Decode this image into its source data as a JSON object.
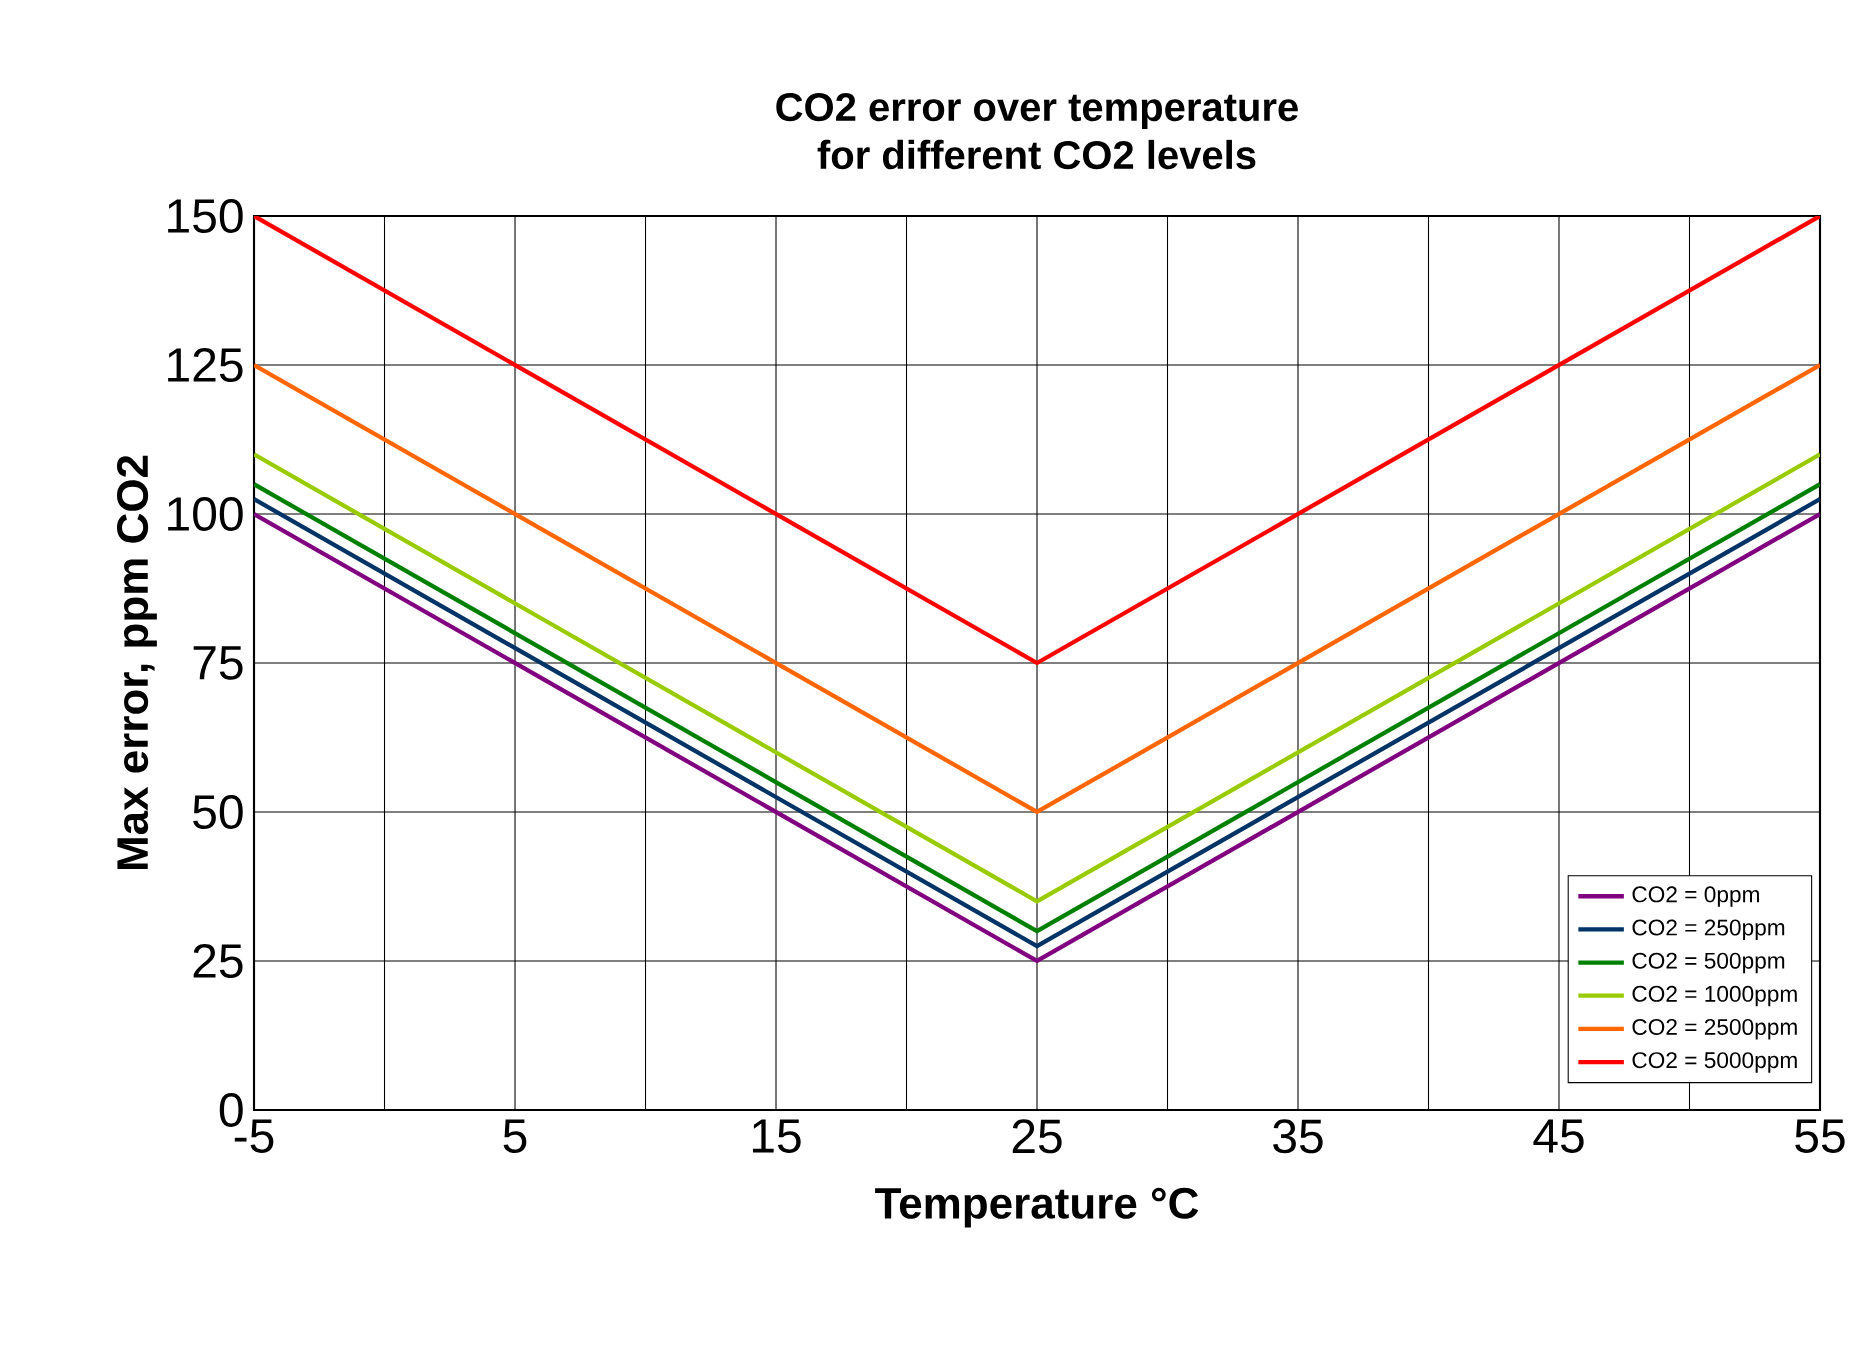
{
  "chart_data": {
    "type": "line",
    "title": "CO2 error over temperature\nfor different CO2 levels",
    "xlabel": "Temperature °C",
    "ylabel": "Max error, ppm CO2",
    "x": [
      -5,
      25,
      55
    ],
    "series": [
      {
        "name": "CO2 = 0ppm",
        "color": "#800080",
        "values": [
          100,
          25,
          100
        ]
      },
      {
        "name": "CO2 = 250ppm",
        "color": "#003366",
        "values": [
          102.5,
          27.5,
          102.5
        ]
      },
      {
        "name": "CO2 = 500ppm",
        "color": "#008000",
        "values": [
          105,
          30,
          105
        ]
      },
      {
        "name": "CO2 = 1000ppm",
        "color": "#99cc00",
        "values": [
          110,
          35,
          110
        ]
      },
      {
        "name": "CO2 = 2500ppm",
        "color": "#ff6600",
        "values": [
          125,
          50,
          125
        ]
      },
      {
        "name": "CO2 = 5000ppm",
        "color": "#ff0000",
        "values": [
          150,
          75,
          150
        ]
      }
    ],
    "xlim": [
      -5,
      55
    ],
    "ylim": [
      0,
      150
    ],
    "xticks": [
      -5,
      {
        "value": 0,
        "label": null
      },
      5,
      {
        "value": 10,
        "label": null
      },
      15,
      {
        "value": 20,
        "label": null
      },
      25,
      {
        "value": 30,
        "label": null
      },
      35,
      {
        "value": 40,
        "label": null
      },
      45,
      {
        "value": 50,
        "label": null
      },
      55
    ],
    "yticks": [
      0,
      25,
      50,
      75,
      100,
      125,
      150
    ],
    "grid": true,
    "legend": "bottom right",
    "marker": "none",
    "line_style": "solid"
  }
}
